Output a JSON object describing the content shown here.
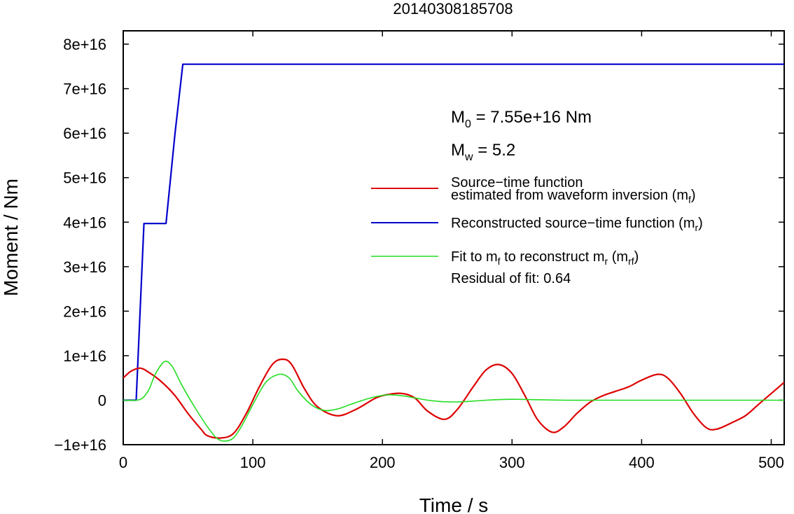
{
  "chart_data": {
    "type": "line",
    "title": "20140308185708",
    "xlabel": "Time / s",
    "ylabel": "Moment / Nm",
    "xlim": [
      0,
      510
    ],
    "ylim": [
      -1e+16,
      8.3e+16
    ],
    "x_ticks": [
      {
        "value": 0,
        "label": "0"
      },
      {
        "value": 100,
        "label": "100"
      },
      {
        "value": 200,
        "label": "200"
      },
      {
        "value": 300,
        "label": "300"
      },
      {
        "value": 400,
        "label": "400"
      },
      {
        "value": 500,
        "label": "500"
      }
    ],
    "y_ticks": [
      {
        "value": -1e+16,
        "label": "−1e+16"
      },
      {
        "value": 0,
        "label": "0"
      },
      {
        "value": 1e+16,
        "label": "1e+16"
      },
      {
        "value": 2e+16,
        "label": "2e+16"
      },
      {
        "value": 3e+16,
        "label": "3e+16"
      },
      {
        "value": 4e+16,
        "label": "4e+16"
      },
      {
        "value": 5e+16,
        "label": "5e+16"
      },
      {
        "value": 6e+16,
        "label": "6e+16"
      },
      {
        "value": 7e+16,
        "label": "7e+16"
      },
      {
        "value": 8e+16,
        "label": "8e+16"
      }
    ],
    "grid": false,
    "legend_position": "right",
    "annotations": {
      "m0": {
        "main": "M",
        "sub": "0",
        "rest": " = 7.55e+16 Nm"
      },
      "mw": {
        "main": "M",
        "sub": "w",
        "rest": " = 5.2"
      }
    },
    "series": [
      {
        "key": "mf",
        "color": "#dd0000",
        "legend_line1": "Source−time function",
        "legend_line2": "estimated from waveform inversion (m",
        "legend_sub": "f",
        "legend_tail": ")",
        "x": [
          0,
          6,
          13,
          20,
          30,
          40,
          50,
          60,
          65,
          75,
          85,
          95,
          105,
          115,
          123,
          130,
          140,
          150,
          165,
          180,
          195,
          205,
          215,
          225,
          235,
          248,
          258,
          270,
          280,
          290,
          300,
          310,
          320,
          331,
          340,
          350,
          360,
          370,
          380,
          390,
          400,
          412,
          420,
          430,
          440,
          450,
          458,
          470,
          480,
          490,
          500,
          510
        ],
        "y": [
          5000000000000000.0,
          6500000000000000.0,
          7200000000000000.0,
          6200000000000000.0,
          4000000000000000.0,
          1000000000000000.0,
          -3000000000000000.0,
          -6500000000000000.0,
          -8000000000000000.0,
          -8500000000000000.0,
          -7500000000000000.0,
          -3000000000000000.0,
          3000000000000000.0,
          8000000000000000.0,
          9200000000000000.0,
          8000000000000000.0,
          2500000000000000.0,
          -1500000000000000.0,
          -3500000000000000.0,
          -2000000000000000.0,
          500000000000000.0,
          1300000000000000.0,
          1500000000000000.0,
          500000000000000.0,
          -2500000000000000.0,
          -4300000000000000.0,
          -2000000000000000.0,
          3000000000000000.0,
          6800000000000000.0,
          8000000000000000.0,
          6000000000000000.0,
          1000000000000000.0,
          -4500000000000000.0,
          -7200000000000000.0,
          -6000000000000000.0,
          -3000000000000000.0,
          -500000000000000.0,
          1000000000000000.0,
          2000000000000000.0,
          3000000000000000.0,
          4500000000000000.0,
          5800000000000000.0,
          5000000000000000.0,
          1500000000000000.0,
          -3000000000000000.0,
          -6200000000000000.0,
          -6500000000000000.0,
          -5000000000000000.0,
          -3500000000000000.0,
          -1000000000000000.0,
          1500000000000000.0,
          4000000000000000.0
        ]
      },
      {
        "key": "mr",
        "color": "#0000cc",
        "legend_line1": "Reconstructed source−time function (m",
        "legend_sub": "r",
        "legend_tail": ")",
        "x": [
          0,
          10,
          16,
          33,
          40,
          46,
          510
        ],
        "y": [
          0,
          0,
          3.97e+16,
          3.97e+16,
          6e+16,
          7.55e+16,
          7.55e+16
        ]
      },
      {
        "key": "mrf",
        "color": "#22dd22",
        "legend_line1": "Fit to m",
        "legend_mid_sub": "f",
        "legend_mid": " to reconstruct m",
        "legend_sub2": "r",
        "legend_mid2": " (m",
        "legend_sub3": "rf",
        "legend_tail": ")",
        "legend_line2": "Residual of fit: 0.64",
        "x": [
          0,
          10,
          15,
          20,
          25,
          32,
          38,
          45,
          55,
          65,
          72,
          78,
          85,
          92,
          100,
          110,
          120,
          128,
          135,
          145,
          155,
          165,
          175,
          185,
          195,
          205,
          215,
          225,
          235,
          245,
          255,
          265,
          280,
          300,
          320,
          340,
          360,
          380,
          400,
          420,
          440,
          460,
          480,
          500,
          510
        ],
        "y": [
          0,
          0,
          500000000000000.0,
          2500000000000000.0,
          6000000000000000.0,
          8700000000000000.0,
          7500000000000000.0,
          3500000000000000.0,
          -1500000000000000.0,
          -6000000000000000.0,
          -8500000000000000.0,
          -9200000000000000.0,
          -8500000000000000.0,
          -5500000000000000.0,
          -1000000000000000.0,
          4000000000000000.0,
          5800000000000000.0,
          5000000000000000.0,
          2000000000000000.0,
          -1000000000000000.0,
          -2300000000000000.0,
          -2000000000000000.0,
          -1000000000000000.0,
          0.0,
          800000000000000.0,
          1200000000000000.0,
          1000000000000000.0,
          500000000000000.0,
          0.0,
          -300000000000000.0,
          -400000000000000.0,
          -300000000000000.0,
          0.0,
          200000000000000.0,
          100000000000000.0,
          0.0,
          0.0,
          0.0,
          0.0,
          0.0,
          0.0,
          0.0,
          0.0,
          0.0,
          0.0
        ]
      }
    ]
  }
}
